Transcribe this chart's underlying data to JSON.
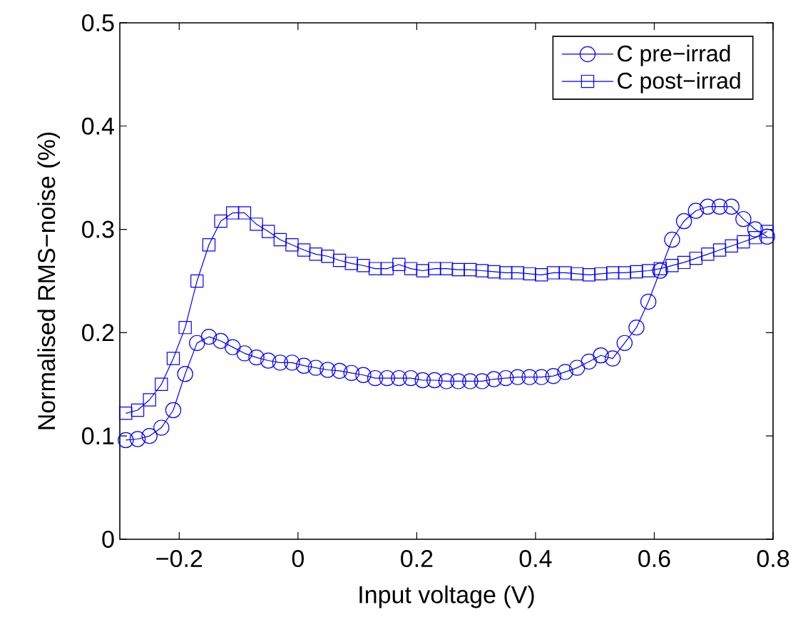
{
  "chart_data": {
    "type": "line",
    "xlabel": "Input voltage (V)",
    "ylabel": "Normalised RMS−noise (%)",
    "x": [
      -0.29,
      -0.27,
      -0.25,
      -0.23,
      -0.21,
      -0.19,
      -0.17,
      -0.15,
      -0.13,
      -0.11,
      -0.09,
      -0.07,
      -0.05,
      -0.03,
      -0.01,
      0.01,
      0.03,
      0.05,
      0.07,
      0.09,
      0.11,
      0.13,
      0.15,
      0.17,
      0.19,
      0.21,
      0.23,
      0.25,
      0.27,
      0.29,
      0.31,
      0.33,
      0.35,
      0.37,
      0.39,
      0.41,
      0.43,
      0.45,
      0.47,
      0.49,
      0.51,
      0.53,
      0.55,
      0.57,
      0.59,
      0.61,
      0.63,
      0.65,
      0.67,
      0.69,
      0.71,
      0.73,
      0.75,
      0.77,
      0.79
    ],
    "series": [
      {
        "name": "C pre−irrad",
        "color": "#0000ff",
        "marker": "circle",
        "values": [
          0.096,
          0.097,
          0.1,
          0.108,
          0.125,
          0.16,
          0.19,
          0.196,
          0.192,
          0.186,
          0.18,
          0.176,
          0.173,
          0.171,
          0.171,
          0.168,
          0.166,
          0.164,
          0.163,
          0.161,
          0.159,
          0.156,
          0.156,
          0.156,
          0.156,
          0.154,
          0.154,
          0.153,
          0.153,
          0.153,
          0.153,
          0.155,
          0.156,
          0.157,
          0.157,
          0.157,
          0.158,
          0.162,
          0.166,
          0.172,
          0.178,
          0.175,
          0.19,
          0.205,
          0.23,
          0.26,
          0.29,
          0.308,
          0.318,
          0.322,
          0.322,
          0.322,
          0.31,
          0.3,
          0.293
        ]
      },
      {
        "name": "C post−irrad",
        "color": "#0000ff",
        "marker": "square",
        "values": [
          0.122,
          0.125,
          0.135,
          0.15,
          0.175,
          0.205,
          0.25,
          0.285,
          0.308,
          0.316,
          0.316,
          0.305,
          0.298,
          0.29,
          0.285,
          0.28,
          0.276,
          0.274,
          0.27,
          0.267,
          0.265,
          0.262,
          0.262,
          0.266,
          0.262,
          0.26,
          0.262,
          0.262,
          0.261,
          0.261,
          0.26,
          0.259,
          0.258,
          0.258,
          0.257,
          0.256,
          0.258,
          0.258,
          0.257,
          0.256,
          0.257,
          0.258,
          0.258,
          0.259,
          0.26,
          0.262,
          0.265,
          0.268,
          0.272,
          0.276,
          0.28,
          0.284,
          0.288,
          0.292,
          0.298
        ]
      }
    ],
    "xlim": [
      -0.3,
      0.8
    ],
    "ylim": [
      0,
      0.5
    ],
    "xticks": [
      {
        "value": -0.2,
        "label": "−0.2"
      },
      0,
      0.2,
      0.4,
      0.6,
      0.8
    ],
    "yticks": [
      0,
      0.1,
      0.2,
      0.3,
      0.4,
      0.5
    ],
    "grid": false,
    "legend": "top right",
    "line_style": "solid"
  }
}
